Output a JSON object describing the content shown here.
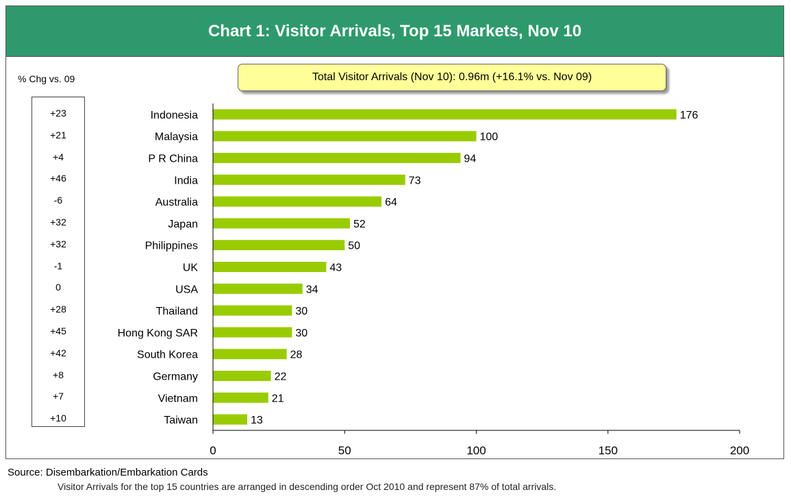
{
  "header": {
    "title": "Chart 1: Visitor Arrivals, Top 15 Markets, Nov 10"
  },
  "total_box": "Total Visitor Arrivals (Nov 10): 0.96m (+16.1% vs. Nov 09)",
  "chg_header": "% Chg vs. 09",
  "footer": {
    "source": "Source: Disembarkation/Embarkation Cards",
    "note": "Visitor Arrivals for the top 15 countries are arranged in descending order Oct 2010 and represent 87% of total arrivals."
  },
  "colors": {
    "bar": "#99cc00",
    "header_bg": "#2e9a6b",
    "total_box_bg": "#ffff99"
  },
  "chart_data": {
    "type": "bar",
    "orientation": "horizontal",
    "title": "Chart 1: Visitor Arrivals, Top 15 Markets, Nov 10",
    "categories": [
      "Indonesia",
      "Malaysia",
      "P R China",
      "India",
      "Australia",
      "Japan",
      "Philippines",
      "UK",
      "USA",
      "Thailand",
      "Hong Kong SAR",
      "South Korea",
      "Germany",
      "Vietnam",
      "Taiwan"
    ],
    "values": [
      176,
      100,
      94,
      73,
      64,
      52,
      50,
      43,
      34,
      30,
      30,
      28,
      22,
      21,
      13
    ],
    "data_labels": [
      "176",
      "100",
      "94",
      "73",
      "64",
      "52",
      "50",
      "43",
      "34",
      "30",
      "30",
      "28",
      "22",
      "21",
      "13"
    ],
    "pct_change_vs_09": [
      "+23",
      "+21",
      "+4",
      "+46",
      "-6",
      "+32",
      "+32",
      "-1",
      "0",
      "+28",
      "+45",
      "+42",
      "+8",
      "+7",
      "+10"
    ],
    "xlim": [
      0,
      200
    ],
    "xticks": [
      0,
      50,
      100,
      150,
      200
    ],
    "xtick_labels": [
      "0",
      "50",
      "100",
      "150",
      "200"
    ],
    "grid": false,
    "legend": "none"
  }
}
